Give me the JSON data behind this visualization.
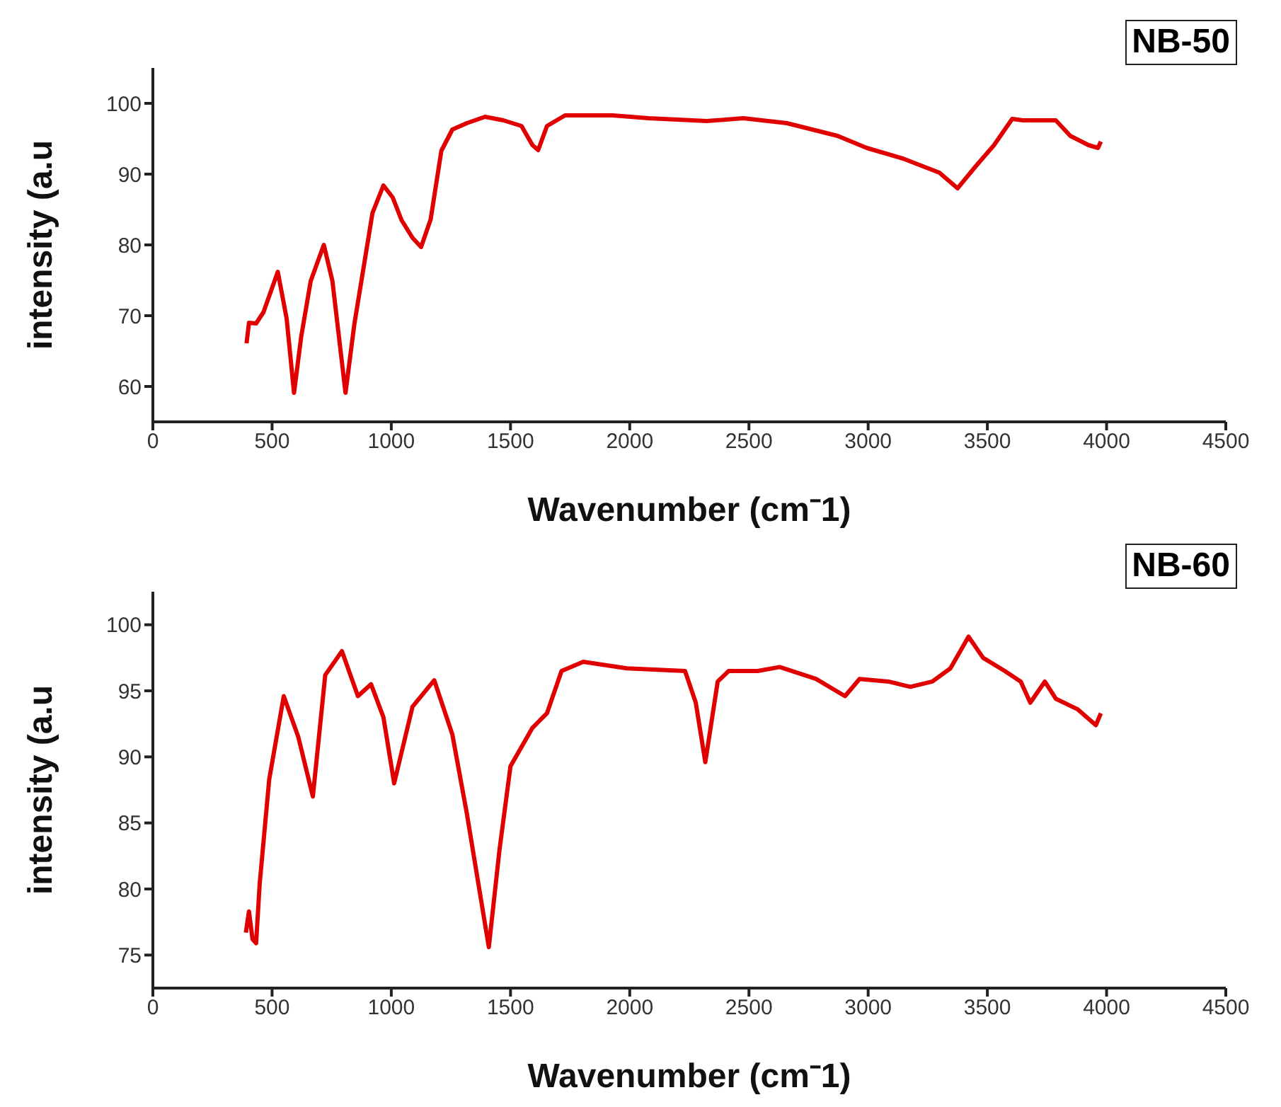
{
  "chart_data": [
    {
      "type": "line",
      "title": "NB-50",
      "xlabel": "Wavenumber (cm⁻1)",
      "ylabel": "intensity (a.u",
      "xlim": [
        0,
        4500
      ],
      "xticks": [
        0,
        500,
        1000,
        1500,
        2000,
        2500,
        3000,
        3500,
        4000,
        4500
      ],
      "ylim": [
        55,
        105
      ],
      "yticks": [
        60,
        70,
        80,
        90,
        100
      ],
      "grid": false,
      "legend": false,
      "marker": "none",
      "line_style": "solid",
      "series": [
        {
          "color": "#e00000",
          "x": [
            393,
            403,
            433,
            464,
            524,
            561,
            592,
            622,
            662,
            717,
            753,
            808,
            845,
            921,
            967,
            1006,
            1043,
            1089,
            1125,
            1165,
            1210,
            1256,
            1317,
            1393,
            1470,
            1546,
            1592,
            1616,
            1653,
            1729,
            1927,
            2079,
            2323,
            2476,
            2659,
            2872,
            2994,
            3146,
            3299,
            3375,
            3451,
            3528,
            3604,
            3650,
            3726,
            3787,
            3848,
            3924,
            3964,
            3976
          ],
          "values": [
            66.1,
            69.0,
            68.9,
            70.5,
            76.2,
            69.6,
            59.1,
            67.0,
            74.9,
            80.0,
            74.9,
            59.1,
            68.8,
            84.5,
            88.4,
            86.7,
            83.5,
            81.0,
            79.7,
            83.6,
            93.3,
            96.3,
            97.2,
            98.1,
            97.6,
            96.8,
            94.1,
            93.4,
            96.8,
            98.3,
            98.3,
            97.9,
            97.5,
            97.9,
            97.2,
            95.4,
            93.7,
            92.2,
            90.2,
            88.0,
            91.1,
            94.1,
            97.8,
            97.6,
            97.6,
            97.6,
            95.4,
            94.1,
            93.7,
            94.6
          ]
        }
      ]
    },
    {
      "type": "line",
      "title": "NB-60",
      "xlabel": "Wavenumber (cm⁻1)",
      "ylabel": "intensity (a.u",
      "xlim": [
        0,
        4500
      ],
      "xticks": [
        0,
        500,
        1000,
        1500,
        2000,
        2500,
        3000,
        3500,
        4000,
        4500
      ],
      "ylim": [
        72.5,
        102.5
      ],
      "yticks": [
        75,
        80,
        85,
        90,
        95,
        100
      ],
      "grid": false,
      "legend": false,
      "marker": "none",
      "line_style": "solid",
      "series": [
        {
          "color": "#e00000",
          "x": [
            390,
            403,
            418,
            433,
            448,
            488,
            549,
            610,
            671,
            723,
            793,
            860,
            915,
            967,
            1012,
            1089,
            1180,
            1256,
            1317,
            1409,
            1454,
            1500,
            1592,
            1653,
            1714,
            1805,
            1988,
            2232,
            2277,
            2317,
            2369,
            2415,
            2537,
            2629,
            2781,
            2903,
            2964,
            3085,
            3177,
            3269,
            3345,
            3421,
            3482,
            3573,
            3640,
            3680,
            3741,
            3787,
            3879,
            3955,
            3976
          ],
          "values": [
            76.7,
            78.3,
            76.2,
            75.9,
            80.4,
            88.3,
            94.6,
            91.5,
            87.0,
            96.2,
            98.0,
            94.6,
            95.5,
            93.0,
            88.0,
            93.8,
            95.8,
            91.7,
            85.7,
            75.6,
            83.0,
            89.3,
            92.2,
            93.3,
            96.5,
            97.2,
            96.7,
            96.5,
            94.1,
            89.6,
            95.7,
            96.5,
            96.5,
            96.8,
            95.9,
            94.6,
            95.9,
            95.7,
            95.3,
            95.7,
            96.7,
            99.1,
            97.5,
            96.5,
            95.7,
            94.1,
            95.7,
            94.4,
            93.6,
            92.4,
            93.3
          ]
        }
      ]
    }
  ]
}
